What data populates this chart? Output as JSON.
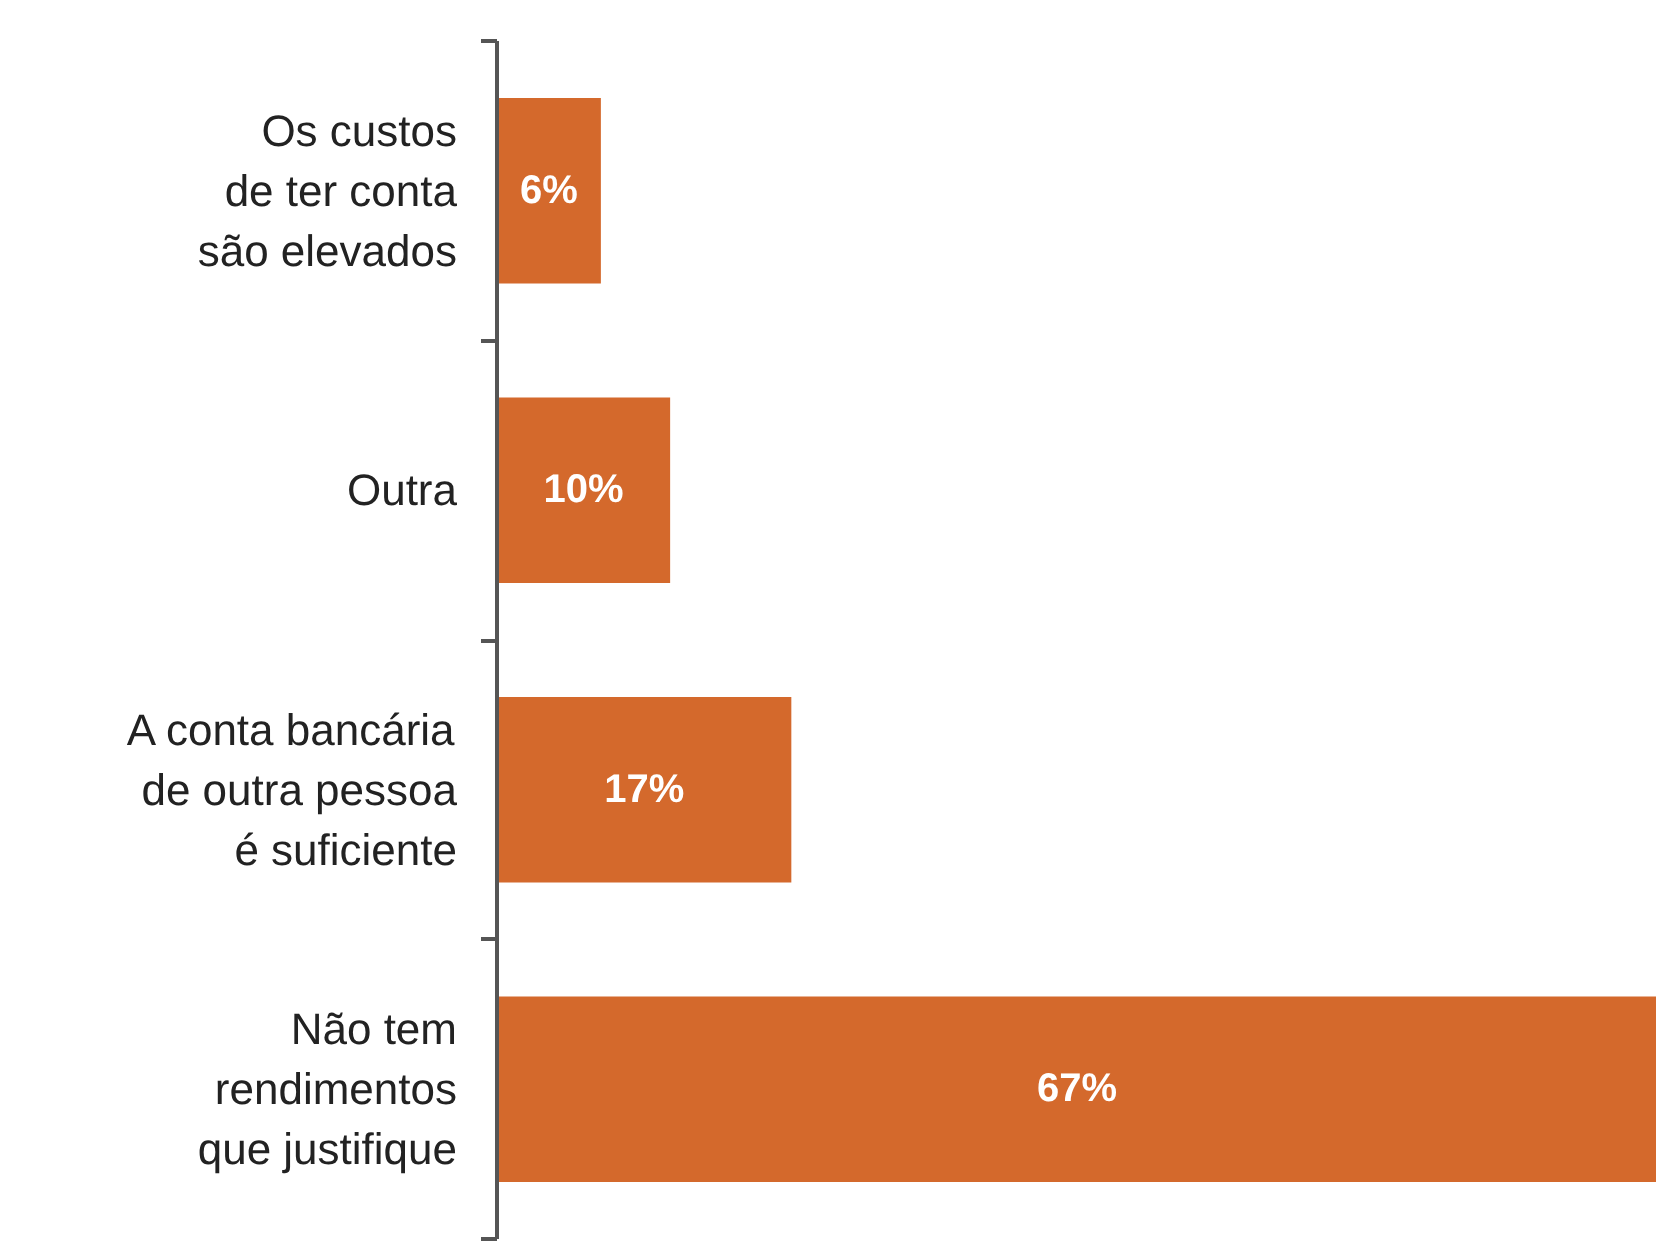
{
  "chart_data": {
    "type": "bar",
    "orientation": "horizontal",
    "categories": [
      "Os custos\nde ter conta\nsão elevados",
      "Outra",
      "A conta bancária\nde outra pessoa\né suficiente",
      "Não tem\nrendimentos\nque justifique"
    ],
    "values": [
      6,
      10,
      17,
      67
    ],
    "color": "#d4692c",
    "data_labels": true,
    "value_labels": [
      "6%",
      "10%",
      "17%",
      "67%"
    ]
  }
}
